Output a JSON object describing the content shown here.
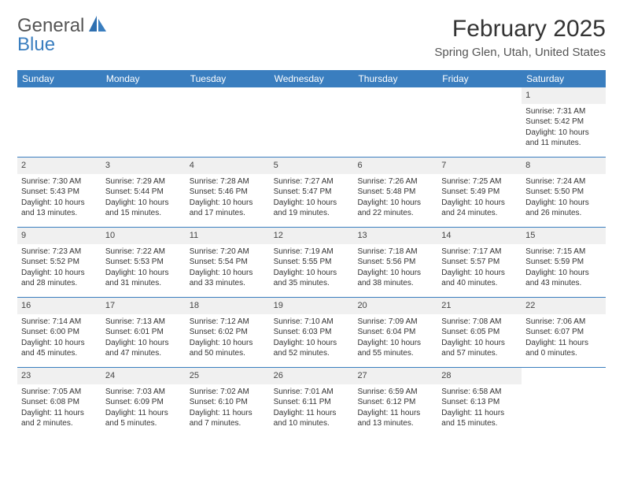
{
  "logo": {
    "general": "General",
    "blue": "Blue"
  },
  "title": "February 2025",
  "location": "Spring Glen, Utah, United States",
  "colors": {
    "header_bg": "#3a7ebf",
    "header_text": "#ffffff",
    "daynum_bg": "#f0f0f0",
    "rule": "#3a7ebf",
    "body_text": "#333333"
  },
  "dayNames": [
    "Sunday",
    "Monday",
    "Tuesday",
    "Wednesday",
    "Thursday",
    "Friday",
    "Saturday"
  ],
  "weeks": [
    [
      null,
      null,
      null,
      null,
      null,
      null,
      {
        "n": "1",
        "sunrise": "7:31 AM",
        "sunset": "5:42 PM",
        "daylight": "10 hours and 11 minutes."
      }
    ],
    [
      {
        "n": "2",
        "sunrise": "7:30 AM",
        "sunset": "5:43 PM",
        "daylight": "10 hours and 13 minutes."
      },
      {
        "n": "3",
        "sunrise": "7:29 AM",
        "sunset": "5:44 PM",
        "daylight": "10 hours and 15 minutes."
      },
      {
        "n": "4",
        "sunrise": "7:28 AM",
        "sunset": "5:46 PM",
        "daylight": "10 hours and 17 minutes."
      },
      {
        "n": "5",
        "sunrise": "7:27 AM",
        "sunset": "5:47 PM",
        "daylight": "10 hours and 19 minutes."
      },
      {
        "n": "6",
        "sunrise": "7:26 AM",
        "sunset": "5:48 PM",
        "daylight": "10 hours and 22 minutes."
      },
      {
        "n": "7",
        "sunrise": "7:25 AM",
        "sunset": "5:49 PM",
        "daylight": "10 hours and 24 minutes."
      },
      {
        "n": "8",
        "sunrise": "7:24 AM",
        "sunset": "5:50 PM",
        "daylight": "10 hours and 26 minutes."
      }
    ],
    [
      {
        "n": "9",
        "sunrise": "7:23 AM",
        "sunset": "5:52 PM",
        "daylight": "10 hours and 28 minutes."
      },
      {
        "n": "10",
        "sunrise": "7:22 AM",
        "sunset": "5:53 PM",
        "daylight": "10 hours and 31 minutes."
      },
      {
        "n": "11",
        "sunrise": "7:20 AM",
        "sunset": "5:54 PM",
        "daylight": "10 hours and 33 minutes."
      },
      {
        "n": "12",
        "sunrise": "7:19 AM",
        "sunset": "5:55 PM",
        "daylight": "10 hours and 35 minutes."
      },
      {
        "n": "13",
        "sunrise": "7:18 AM",
        "sunset": "5:56 PM",
        "daylight": "10 hours and 38 minutes."
      },
      {
        "n": "14",
        "sunrise": "7:17 AM",
        "sunset": "5:57 PM",
        "daylight": "10 hours and 40 minutes."
      },
      {
        "n": "15",
        "sunrise": "7:15 AM",
        "sunset": "5:59 PM",
        "daylight": "10 hours and 43 minutes."
      }
    ],
    [
      {
        "n": "16",
        "sunrise": "7:14 AM",
        "sunset": "6:00 PM",
        "daylight": "10 hours and 45 minutes."
      },
      {
        "n": "17",
        "sunrise": "7:13 AM",
        "sunset": "6:01 PM",
        "daylight": "10 hours and 47 minutes."
      },
      {
        "n": "18",
        "sunrise": "7:12 AM",
        "sunset": "6:02 PM",
        "daylight": "10 hours and 50 minutes."
      },
      {
        "n": "19",
        "sunrise": "7:10 AM",
        "sunset": "6:03 PM",
        "daylight": "10 hours and 52 minutes."
      },
      {
        "n": "20",
        "sunrise": "7:09 AM",
        "sunset": "6:04 PM",
        "daylight": "10 hours and 55 minutes."
      },
      {
        "n": "21",
        "sunrise": "7:08 AM",
        "sunset": "6:05 PM",
        "daylight": "10 hours and 57 minutes."
      },
      {
        "n": "22",
        "sunrise": "7:06 AM",
        "sunset": "6:07 PM",
        "daylight": "11 hours and 0 minutes."
      }
    ],
    [
      {
        "n": "23",
        "sunrise": "7:05 AM",
        "sunset": "6:08 PM",
        "daylight": "11 hours and 2 minutes."
      },
      {
        "n": "24",
        "sunrise": "7:03 AM",
        "sunset": "6:09 PM",
        "daylight": "11 hours and 5 minutes."
      },
      {
        "n": "25",
        "sunrise": "7:02 AM",
        "sunset": "6:10 PM",
        "daylight": "11 hours and 7 minutes."
      },
      {
        "n": "26",
        "sunrise": "7:01 AM",
        "sunset": "6:11 PM",
        "daylight": "11 hours and 10 minutes."
      },
      {
        "n": "27",
        "sunrise": "6:59 AM",
        "sunset": "6:12 PM",
        "daylight": "11 hours and 13 minutes."
      },
      {
        "n": "28",
        "sunrise": "6:58 AM",
        "sunset": "6:13 PM",
        "daylight": "11 hours and 15 minutes."
      },
      null
    ]
  ],
  "labels": {
    "sunrise": "Sunrise:",
    "sunset": "Sunset:",
    "daylight": "Daylight:"
  }
}
